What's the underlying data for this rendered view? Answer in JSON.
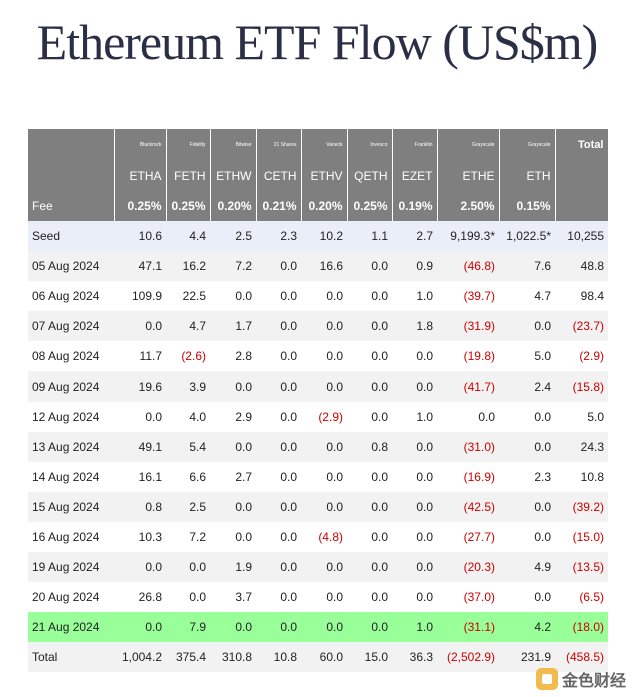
{
  "title": "Ethereum ETF Flow (US$m)",
  "columns": [
    {
      "issuer": "Blackrock",
      "ticker": "ETHA",
      "fee": "0.25%"
    },
    {
      "issuer": "Fidelity",
      "ticker": "FETH",
      "fee": "0.25%"
    },
    {
      "issuer": "Bitwise",
      "ticker": "ETHW",
      "fee": "0.20%"
    },
    {
      "issuer": "21 Shares",
      "ticker": "CETH",
      "fee": "0.21%"
    },
    {
      "issuer": "Vaneck",
      "ticker": "ETHV",
      "fee": "0.20%"
    },
    {
      "issuer": "Invesco",
      "ticker": "QETH",
      "fee": "0.25%"
    },
    {
      "issuer": "Franklin",
      "ticker": "EZET",
      "fee": "0.19%"
    },
    {
      "issuer": "Grayscale",
      "ticker": "ETHE",
      "fee": "2.50%"
    },
    {
      "issuer": "Grayscale",
      "ticker": "ETH",
      "fee": "0.15%"
    }
  ],
  "total_header": "Total",
  "fee_label": "Fee",
  "rows": [
    {
      "label": "Seed",
      "values": [
        "10.6",
        "4.4",
        "2.5",
        "2.3",
        "10.2",
        "1.1",
        "2.7",
        "9,199.3*",
        "1,022.5*"
      ],
      "total": "10,255"
    },
    {
      "label": "05 Aug 2024",
      "values": [
        "47.1",
        "16.2",
        "7.2",
        "0.0",
        "16.6",
        "0.0",
        "0.9",
        "(46.8)",
        "7.6"
      ],
      "total": "48.8"
    },
    {
      "label": "06 Aug 2024",
      "values": [
        "109.9",
        "22.5",
        "0.0",
        "0.0",
        "0.0",
        "0.0",
        "1.0",
        "(39.7)",
        "4.7"
      ],
      "total": "98.4"
    },
    {
      "label": "07 Aug 2024",
      "values": [
        "0.0",
        "4.7",
        "1.7",
        "0.0",
        "0.0",
        "0.0",
        "1.8",
        "(31.9)",
        "0.0"
      ],
      "total": "(23.7)"
    },
    {
      "label": "08 Aug 2024",
      "values": [
        "11.7",
        "(2.6)",
        "2.8",
        "0.0",
        "0.0",
        "0.0",
        "0.0",
        "(19.8)",
        "5.0"
      ],
      "total": "(2.9)"
    },
    {
      "label": "09 Aug 2024",
      "values": [
        "19.6",
        "3.9",
        "0.0",
        "0.0",
        "0.0",
        "0.0",
        "0.0",
        "(41.7)",
        "2.4"
      ],
      "total": "(15.8)"
    },
    {
      "label": "12 Aug 2024",
      "values": [
        "0.0",
        "4.0",
        "2.9",
        "0.0",
        "(2.9)",
        "0.0",
        "1.0",
        "0.0",
        "0.0"
      ],
      "total": "5.0"
    },
    {
      "label": "13 Aug 2024",
      "values": [
        "49.1",
        "5.4",
        "0.0",
        "0.0",
        "0.0",
        "0.8",
        "0.0",
        "(31.0)",
        "0.0"
      ],
      "total": "24.3"
    },
    {
      "label": "14 Aug 2024",
      "values": [
        "16.1",
        "6.6",
        "2.7",
        "0.0",
        "0.0",
        "0.0",
        "0.0",
        "(16.9)",
        "2.3"
      ],
      "total": "10.8"
    },
    {
      "label": "15 Aug 2024",
      "values": [
        "0.8",
        "2.5",
        "0.0",
        "0.0",
        "0.0",
        "0.0",
        "0.0",
        "(42.5)",
        "0.0"
      ],
      "total": "(39.2)"
    },
    {
      "label": "16 Aug 2024",
      "values": [
        "10.3",
        "7.2",
        "0.0",
        "0.0",
        "(4.8)",
        "0.0",
        "0.0",
        "(27.7)",
        "0.0"
      ],
      "total": "(15.0)"
    },
    {
      "label": "19 Aug 2024",
      "values": [
        "0.0",
        "0.0",
        "1.9",
        "0.0",
        "0.0",
        "0.0",
        "0.0",
        "(20.3)",
        "4.9"
      ],
      "total": "(13.5)"
    },
    {
      "label": "20 Aug 2024",
      "values": [
        "26.8",
        "0.0",
        "3.7",
        "0.0",
        "0.0",
        "0.0",
        "0.0",
        "(37.0)",
        "0.0"
      ],
      "total": "(6.5)"
    },
    {
      "label": "21 Aug 2024",
      "values": [
        "0.0",
        "7.9",
        "0.0",
        "0.0",
        "0.0",
        "0.0",
        "1.0",
        "(31.1)",
        "4.2"
      ],
      "total": "(18.0)"
    },
    {
      "label": "Total",
      "values": [
        "1,004.2",
        "375.4",
        "310.8",
        "10.8",
        "60.0",
        "15.0",
        "36.3",
        "(2,502.9)",
        "231.9"
      ],
      "total": "(458.5)"
    }
  ],
  "colors": {
    "header_bg": "#7f7f7f",
    "seed_bg": "#e9eef8",
    "highlight_bg": "#99ff99",
    "negative": "#cc0000"
  },
  "watermark": {
    "text": "金色财经",
    "icon": "goldfinance-logo-icon"
  }
}
